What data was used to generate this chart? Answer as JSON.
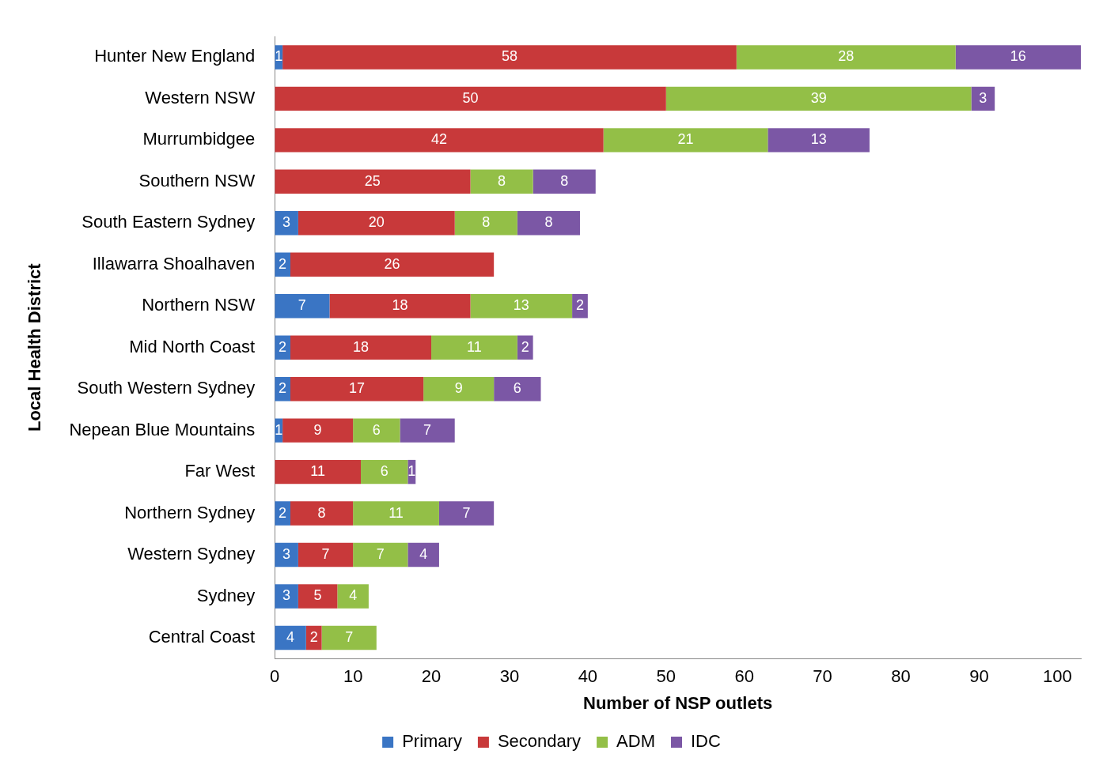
{
  "chart_data": {
    "type": "bar",
    "orientation": "horizontal",
    "stacked": true,
    "data_labels": true,
    "legend": "bottom",
    "grid": false,
    "xlabel": "Number of NSP outlets",
    "ylabel": "Local Health District",
    "categories": [
      "Hunter New England",
      "Western NSW",
      "Murrumbidgee",
      "Southern NSW",
      "South Eastern Sydney",
      "Illawarra Shoalhaven",
      "Northern NSW",
      "Mid North Coast",
      "South Western Sydney",
      "Nepean Blue Mountains",
      "Far West",
      "Northern Sydney",
      "Western Sydney",
      "Sydney",
      "Central Coast"
    ],
    "xlim": [
      0,
      103
    ],
    "xticks": [
      0,
      10,
      20,
      30,
      40,
      50,
      60,
      70,
      80,
      90,
      100
    ],
    "series": [
      {
        "name": "Primary",
        "color": "#3a75c4",
        "values": [
          1,
          null,
          null,
          null,
          3,
          2,
          7,
          2,
          2,
          1,
          null,
          2,
          3,
          3,
          4
        ]
      },
      {
        "name": "Secondary",
        "color": "#c8393a",
        "values": [
          58,
          50,
          42,
          25,
          20,
          26,
          18,
          18,
          17,
          9,
          11,
          8,
          7,
          5,
          2
        ]
      },
      {
        "name": "ADM",
        "color": "#93bf47",
        "values": [
          28,
          39,
          21,
          8,
          8,
          null,
          13,
          11,
          9,
          6,
          6,
          11,
          7,
          4,
          7
        ]
      },
      {
        "name": "IDC",
        "color": "#7b57a5",
        "values": [
          16,
          3,
          13,
          8,
          8,
          null,
          2,
          2,
          6,
          7,
          1,
          7,
          4,
          null,
          null
        ]
      }
    ]
  }
}
